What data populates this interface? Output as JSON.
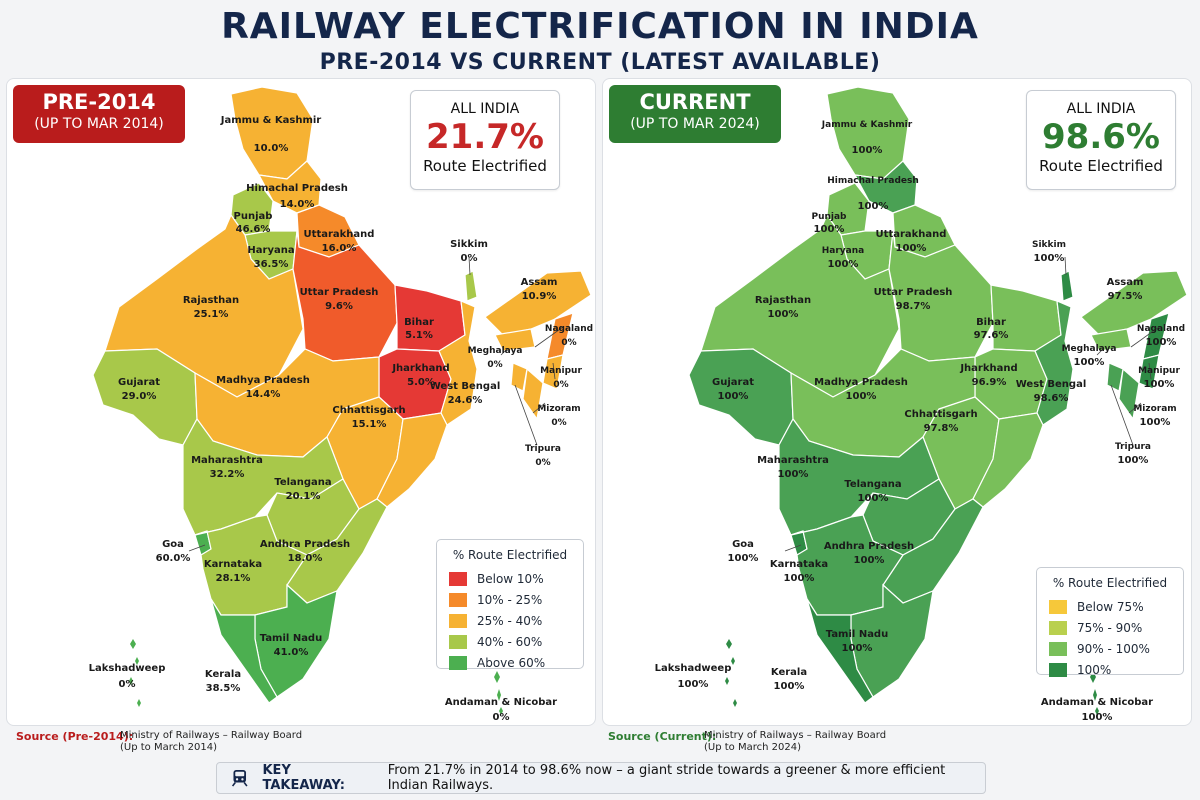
{
  "title": "RAILWAY ELECTRIFICATION IN INDIA",
  "subtitle": "PRE-2014 VS CURRENT (LATEST AVAILABLE)",
  "colors": {
    "dark_red": "#b91c1c",
    "red": "#e53935",
    "orange": "#f58a2a",
    "amber": "#f6b233",
    "lime": "#a8c84a",
    "green": "#4caf50",
    "yellow": "#f6c83a",
    "yellowgreen": "#b9d04e",
    "lightgreen": "#79bf5a",
    "darkgreen": "#2e8b45",
    "tag_green": "#2e7d32",
    "navy": "#14264a"
  },
  "left": {
    "tag_title": "PRE-2014",
    "tag_sub": "(UP TO MAR 2014)",
    "all_india_label": "ALL INDIA",
    "all_india_value": "21.7%",
    "route_label": "Route Electrified",
    "legend_title": "% Route Electrified",
    "legend": [
      {
        "label": "Below 10%",
        "color": "#e53935"
      },
      {
        "label": "10% - 25%",
        "color": "#f58a2a"
      },
      {
        "label": "25% - 40%",
        "color": "#f6b233"
      },
      {
        "label": "40% - 60%",
        "color": "#a8c84a"
      },
      {
        "label": "Above 60%",
        "color": "#4caf50"
      }
    ],
    "states": {
      "jk": {
        "name": "Jammu & Kashmir",
        "value": "10.0%"
      },
      "hp": {
        "name": "Himachal Pradesh",
        "value": "14.0%"
      },
      "pb": {
        "name": "Punjab",
        "value": "46.6%"
      },
      "hr": {
        "name": "Haryana",
        "value": "36.5%"
      },
      "uk": {
        "name": "Uttarakhand",
        "value": "16.0%"
      },
      "rj": {
        "name": "Rajasthan",
        "value": "25.1%"
      },
      "up": {
        "name": "Uttar Pradesh",
        "value": "9.6%"
      },
      "br": {
        "name": "Bihar",
        "value": "5.1%"
      },
      "sk": {
        "name": "Sikkim",
        "value": "0%"
      },
      "as": {
        "name": "Assam",
        "value": "10.9%"
      },
      "nl": {
        "name": "Nagaland",
        "value": "0%"
      },
      "ml": {
        "name": "Meghalaya",
        "value": "0%"
      },
      "mn": {
        "name": "Manipur",
        "value": "0%"
      },
      "mz": {
        "name": "Mizoram",
        "value": "0%"
      },
      "tr": {
        "name": "Tripura",
        "value": "0%"
      },
      "gj": {
        "name": "Gujarat",
        "value": "29.0%"
      },
      "mp": {
        "name": "Madhya Pradesh",
        "value": "14.4%"
      },
      "jh": {
        "name": "Jharkhand",
        "value": "5.0%"
      },
      "wb": {
        "name": "West Bengal",
        "value": "24.6%"
      },
      "cg": {
        "name": "Chhattisgarh",
        "value": "15.1%"
      },
      "mh": {
        "name": "Maharashtra",
        "value": "32.2%"
      },
      "tg": {
        "name": "Telangana",
        "value": "20.1%"
      },
      "ga": {
        "name": "Goa",
        "value": "60.0%"
      },
      "ka": {
        "name": "Karnataka",
        "value": "28.1%"
      },
      "ap": {
        "name": "Andhra Pradesh",
        "value": "18.0%"
      },
      "tn": {
        "name": "Tamil Nadu",
        "value": "41.0%"
      },
      "kl": {
        "name": "Kerala",
        "value": "38.5%"
      },
      "ld": {
        "name": "Lakshadweep",
        "value": "0%"
      },
      "an": {
        "name": "Andaman & Nicobar",
        "value": "0%"
      }
    },
    "source_label": "Source (Pre-2014):",
    "source_line1": "Ministry of Railways – Railway Board",
    "source_line2": "(Up to March 2014)"
  },
  "right": {
    "tag_title": "CURRENT",
    "tag_sub": "(UP TO MAR 2024)",
    "all_india_label": "ALL INDIA",
    "all_india_value": "98.6%",
    "route_label": "Route Electrified",
    "legend_title": "% Route Electrified",
    "legend": [
      {
        "label": "Below 75%",
        "color": "#f6c83a"
      },
      {
        "label": "75% - 90%",
        "color": "#b9d04e"
      },
      {
        "label": "90% - 100%",
        "color": "#79bf5a"
      },
      {
        "label": "100%",
        "color": "#2e8b45"
      }
    ],
    "states": {
      "jk": {
        "name": "Jammu & Kashmir",
        "value": "100%"
      },
      "hp": {
        "name": "Himachal Pradesh",
        "value": "100%"
      },
      "pb": {
        "name": "Punjab",
        "value": "100%"
      },
      "hr": {
        "name": "Haryana",
        "value": "100%"
      },
      "uk": {
        "name": "Uttarakhand",
        "value": "100%"
      },
      "rj": {
        "name": "Rajasthan",
        "value": "100%"
      },
      "up": {
        "name": "Uttar Pradesh",
        "value": "98.7%"
      },
      "br": {
        "name": "Bihar",
        "value": "97.6%"
      },
      "sk": {
        "name": "Sikkim",
        "value": "100%"
      },
      "as": {
        "name": "Assam",
        "value": "97.5%"
      },
      "nl": {
        "name": "Nagaland",
        "value": "100%"
      },
      "ml": {
        "name": "Meghalaya",
        "value": "100%"
      },
      "mn": {
        "name": "Manipur",
        "value": "100%"
      },
      "mz": {
        "name": "Mizoram",
        "value": "100%"
      },
      "tr": {
        "name": "Tripura",
        "value": "100%"
      },
      "gj": {
        "name": "Gujarat",
        "value": "100%"
      },
      "mp": {
        "name": "Madhya Pradesh",
        "value": "100%"
      },
      "jh": {
        "name": "Jharkhand",
        "value": "96.9%"
      },
      "wb": {
        "name": "West Bengal",
        "value": "98.6%"
      },
      "cg": {
        "name": "Chhattisgarh",
        "value": "97.8%"
      },
      "mh": {
        "name": "Maharashtra",
        "value": "100%"
      },
      "tg": {
        "name": "Telangana",
        "value": "100%"
      },
      "ga": {
        "name": "Goa",
        "value": "100%"
      },
      "ka": {
        "name": "Karnataka",
        "value": "100%"
      },
      "ap": {
        "name": "Andhra Pradesh",
        "value": "100%"
      },
      "tn": {
        "name": "Tamil Nadu",
        "value": "100%"
      },
      "kl": {
        "name": "Kerala",
        "value": "100%"
      },
      "ld": {
        "name": "Lakshadweep",
        "value": "100%"
      },
      "an": {
        "name": "Andaman & Nicobar",
        "value": "100%"
      }
    },
    "source_label": "Source (Current):",
    "source_line1": "Ministry of Railways – Railway Board",
    "source_line2": "(Up to March 2024)"
  },
  "takeaway": {
    "label": "KEY TAKEAWAY:",
    "text": "From 21.7% in 2014 to 98.6% now – a giant stride towards a greener & more efficient Indian Railways.",
    "icon": "train-icon"
  }
}
